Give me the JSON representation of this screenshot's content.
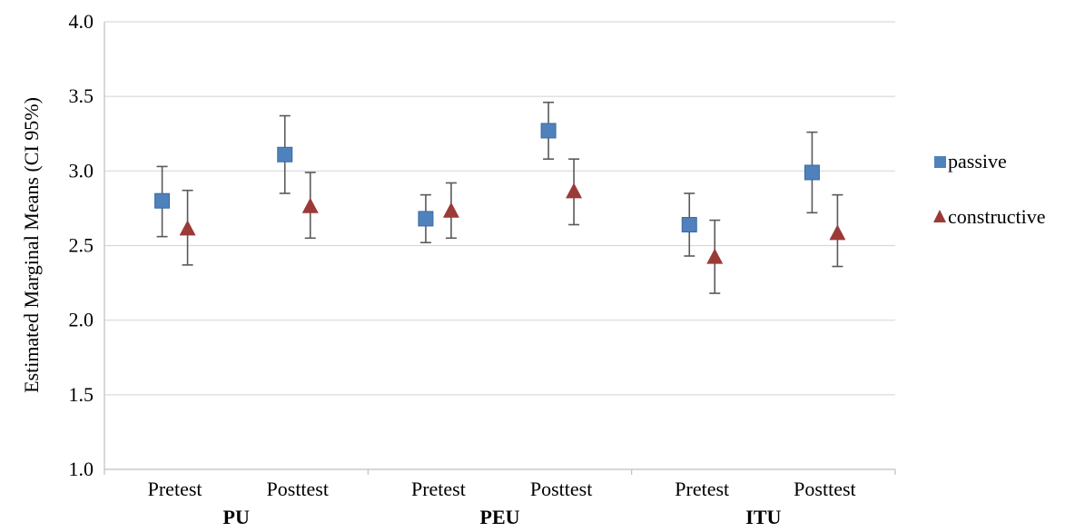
{
  "chart_data": {
    "type": "scatter",
    "ylabel": "Estimated Marginal Means (CI 95%)",
    "ylim": [
      1.0,
      4.0
    ],
    "yticks": [
      "1.0",
      "1.5",
      "2.0",
      "2.5",
      "3.0",
      "3.5",
      "4.0"
    ],
    "grid": true,
    "legend_position": "right",
    "groups": [
      "PU",
      "PEU",
      "ITU"
    ],
    "conditions": [
      "Pretest",
      "Posttest"
    ],
    "series": [
      {
        "name": "passive",
        "marker": "square",
        "color": "#4f81bd",
        "points": [
          {
            "group": "PU",
            "condition": "Pretest",
            "value": 2.8,
            "ci_low": 2.56,
            "ci_high": 3.03
          },
          {
            "group": "PU",
            "condition": "Posttest",
            "value": 3.11,
            "ci_low": 2.85,
            "ci_high": 3.37
          },
          {
            "group": "PEU",
            "condition": "Pretest",
            "value": 2.68,
            "ci_low": 2.52,
            "ci_high": 2.84
          },
          {
            "group": "PEU",
            "condition": "Posttest",
            "value": 3.27,
            "ci_low": 3.08,
            "ci_high": 3.46
          },
          {
            "group": "ITU",
            "condition": "Pretest",
            "value": 2.64,
            "ci_low": 2.43,
            "ci_high": 2.85
          },
          {
            "group": "ITU",
            "condition": "Posttest",
            "value": 2.99,
            "ci_low": 2.72,
            "ci_high": 3.26
          }
        ]
      },
      {
        "name": "constructive",
        "marker": "triangle",
        "color": "#9b3a37",
        "points": [
          {
            "group": "PU",
            "condition": "Pretest",
            "value": 2.61,
            "ci_low": 2.37,
            "ci_high": 2.87
          },
          {
            "group": "PU",
            "condition": "Posttest",
            "value": 2.76,
            "ci_low": 2.55,
            "ci_high": 2.99
          },
          {
            "group": "PEU",
            "condition": "Pretest",
            "value": 2.73,
            "ci_low": 2.55,
            "ci_high": 2.92
          },
          {
            "group": "PEU",
            "condition": "Posttest",
            "value": 2.86,
            "ci_low": 2.64,
            "ci_high": 3.08
          },
          {
            "group": "ITU",
            "condition": "Pretest",
            "value": 2.42,
            "ci_low": 2.18,
            "ci_high": 2.67
          },
          {
            "group": "ITU",
            "condition": "Posttest",
            "value": 2.58,
            "ci_low": 2.36,
            "ci_high": 2.84
          }
        ]
      }
    ]
  }
}
